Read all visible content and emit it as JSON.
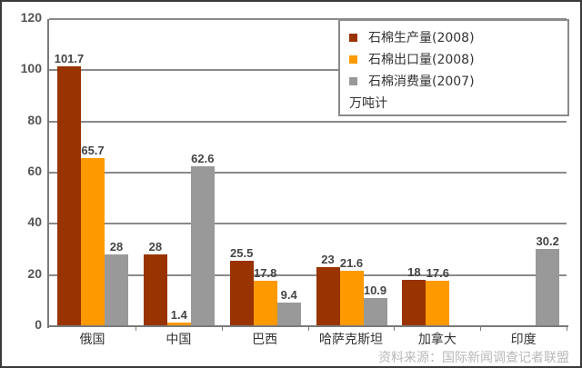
{
  "chart_data": {
    "type": "bar",
    "title": "",
    "xlabel": "",
    "ylabel": "",
    "unit": "万吨计",
    "ylim": [
      0,
      120
    ],
    "yticks": [
      0,
      20,
      40,
      60,
      80,
      100,
      120
    ],
    "grid": true,
    "legend_position": "top-right",
    "categories": [
      "俄国",
      "中国",
      "巴西",
      "哈萨克斯坦",
      "加拿大",
      "印度"
    ],
    "series": [
      {
        "name": "石棉生产量(2008)",
        "color": "#993300",
        "values": [
          101.7,
          28,
          25.5,
          23,
          18,
          null
        ]
      },
      {
        "name": "石棉出口量(2008)",
        "color": "#ff9900",
        "values": [
          65.7,
          1.4,
          17.8,
          21.6,
          17.6,
          null
        ]
      },
      {
        "name": "石棉消费量(2007)",
        "color": "#999999",
        "values": [
          28,
          62.6,
          9.4,
          10.9,
          null,
          30.2
        ]
      }
    ],
    "source": "资料来源：国际新闻调查记者联盟"
  },
  "legend": {
    "items": [
      {
        "label": "石棉生产量(2008)",
        "color": "#993300"
      },
      {
        "label": "石棉出口量(2008)",
        "color": "#ff9900"
      },
      {
        "label": "石棉消费量(2007)",
        "color": "#999999"
      }
    ],
    "unit": "万吨计"
  },
  "yaxis": {
    "ticks": [
      "0",
      "20",
      "40",
      "60",
      "80",
      "100",
      "120"
    ]
  },
  "xaxis": {
    "categories": [
      "俄国",
      "中国",
      "巴西",
      "哈萨克斯坦",
      "加拿大",
      "印度"
    ]
  },
  "labels": {
    "s0": [
      "101.7",
      "28",
      "25.5",
      "23",
      "18",
      ""
    ],
    "s1": [
      "65.7",
      "1.4",
      "17.8",
      "21.6",
      "17.6",
      ""
    ],
    "s2": [
      "28",
      "62.6",
      "9.4",
      "10.9",
      "",
      "30.2"
    ]
  },
  "footer": {
    "source": "资料来源：国际新闻调查记者联盟"
  }
}
